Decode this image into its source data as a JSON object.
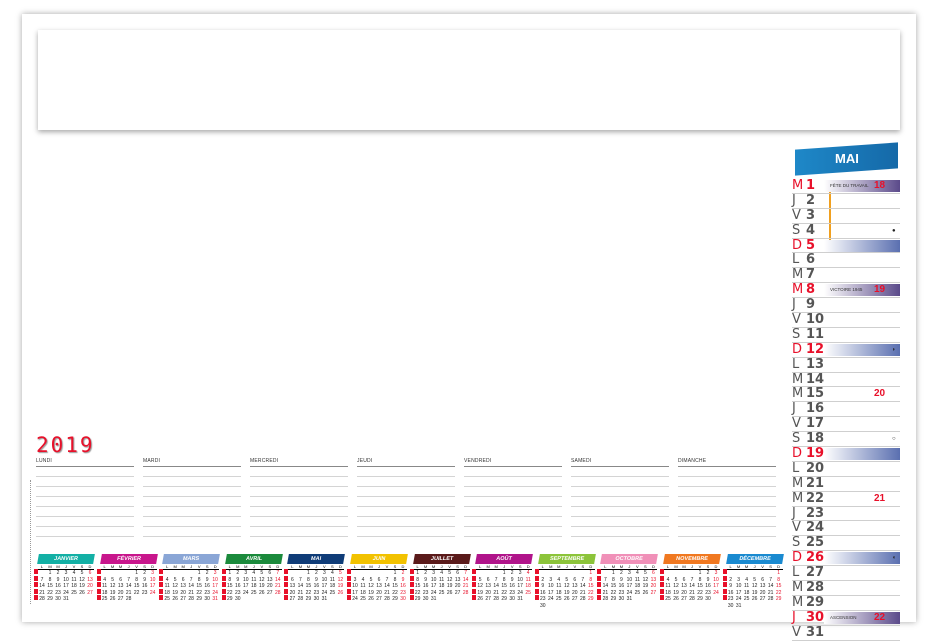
{
  "year": "2019",
  "week_days": [
    "LUNDI",
    "MARDI",
    "MERCREDI",
    "JEUDI",
    "VENDREDI",
    "SAMEDI",
    "DIMANCHE"
  ],
  "sidebar": {
    "month": "MAI",
    "days": [
      {
        "l": "M",
        "n": "1",
        "red": true,
        "band": "violet",
        "text": "FÊTE DU TRAVAIL",
        "week": "18"
      },
      {
        "l": "J",
        "n": "2"
      },
      {
        "l": "V",
        "n": "3"
      },
      {
        "l": "S",
        "n": "4",
        "moon": "●"
      },
      {
        "l": "D",
        "n": "5",
        "red": true,
        "band": "blue"
      },
      {
        "l": "L",
        "n": "6"
      },
      {
        "l": "M",
        "n": "7"
      },
      {
        "l": "M",
        "n": "8",
        "red": true,
        "band": "violet",
        "text": "VICTOIRE 1945",
        "week": "19"
      },
      {
        "l": "J",
        "n": "9"
      },
      {
        "l": "V",
        "n": "10"
      },
      {
        "l": "S",
        "n": "11"
      },
      {
        "l": "D",
        "n": "12",
        "red": true,
        "band": "blue",
        "moon": "◗"
      },
      {
        "l": "L",
        "n": "13"
      },
      {
        "l": "M",
        "n": "14"
      },
      {
        "l": "M",
        "n": "15",
        "week": "20"
      },
      {
        "l": "J",
        "n": "16"
      },
      {
        "l": "V",
        "n": "17"
      },
      {
        "l": "S",
        "n": "18",
        "moon": "○"
      },
      {
        "l": "D",
        "n": "19",
        "red": true,
        "band": "blue"
      },
      {
        "l": "L",
        "n": "20"
      },
      {
        "l": "M",
        "n": "21"
      },
      {
        "l": "M",
        "n": "22",
        "week": "21"
      },
      {
        "l": "J",
        "n": "23"
      },
      {
        "l": "V",
        "n": "24"
      },
      {
        "l": "S",
        "n": "25"
      },
      {
        "l": "D",
        "n": "26",
        "red": true,
        "band": "blue",
        "moon": "◖"
      },
      {
        "l": "L",
        "n": "27"
      },
      {
        "l": "M",
        "n": "28"
      },
      {
        "l": "M",
        "n": "29"
      },
      {
        "l": "J",
        "n": "30",
        "red": true,
        "band": "violet",
        "text": "ASCENSION",
        "week": "22"
      },
      {
        "l": "V",
        "n": "31"
      }
    ]
  },
  "weekday_initials": [
    "L",
    "M",
    "M",
    "J",
    "V",
    "S",
    "D"
  ],
  "months": [
    {
      "name": "JANVIER",
      "color": "#13b0a5",
      "offset": 1,
      "days": 31
    },
    {
      "name": "FÉVRIER",
      "color": "#c8168c",
      "offset": 4,
      "days": 28
    },
    {
      "name": "MARS",
      "color": "#8aa6d6",
      "offset": 4,
      "days": 31
    },
    {
      "name": "AVRIL",
      "color": "#1b8a3c",
      "offset": 0,
      "days": 30
    },
    {
      "name": "MAI",
      "color": "#0f3c78",
      "offset": 2,
      "days": 31
    },
    {
      "name": "JUIN",
      "color": "#f2c200",
      "offset": 5,
      "days": 30
    },
    {
      "name": "JUILLET",
      "color": "#5a1a1a",
      "offset": 0,
      "days": 31
    },
    {
      "name": "AOÛT",
      "color": "#b0148a",
      "offset": 3,
      "days": 31
    },
    {
      "name": "SEPTEMBRE",
      "color": "#8cc43a",
      "offset": 6,
      "days": 30
    },
    {
      "name": "OCTOBRE",
      "color": "#f090b8",
      "offset": 1,
      "days": 31
    },
    {
      "name": "NOVEMBRE",
      "color": "#f07820",
      "offset": 4,
      "days": 30
    },
    {
      "name": "DÉCEMBRE",
      "color": "#1a8ad0",
      "offset": 6,
      "days": 31
    }
  ]
}
